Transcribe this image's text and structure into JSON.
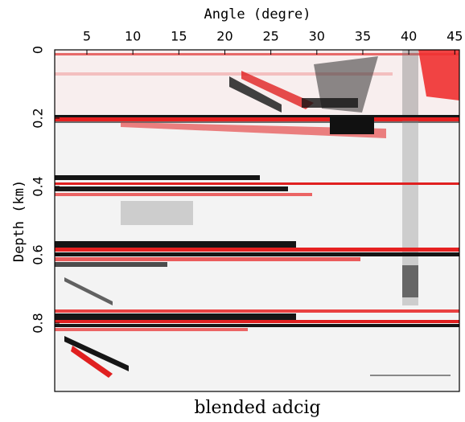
{
  "chart_data": {
    "type": "image",
    "title": "blended adcig",
    "x_label": "Angle (degre)",
    "y_label": "Depth (km)",
    "xlim": [
      1.5,
      45.5
    ],
    "ylim": [
      0,
      1
    ],
    "xticks": [
      5,
      10,
      15,
      20,
      25,
      30,
      35,
      40,
      45
    ],
    "yticks": [
      0,
      0.2,
      0.4,
      0.6,
      0.8
    ],
    "x_axis_position": "top"
  }
}
